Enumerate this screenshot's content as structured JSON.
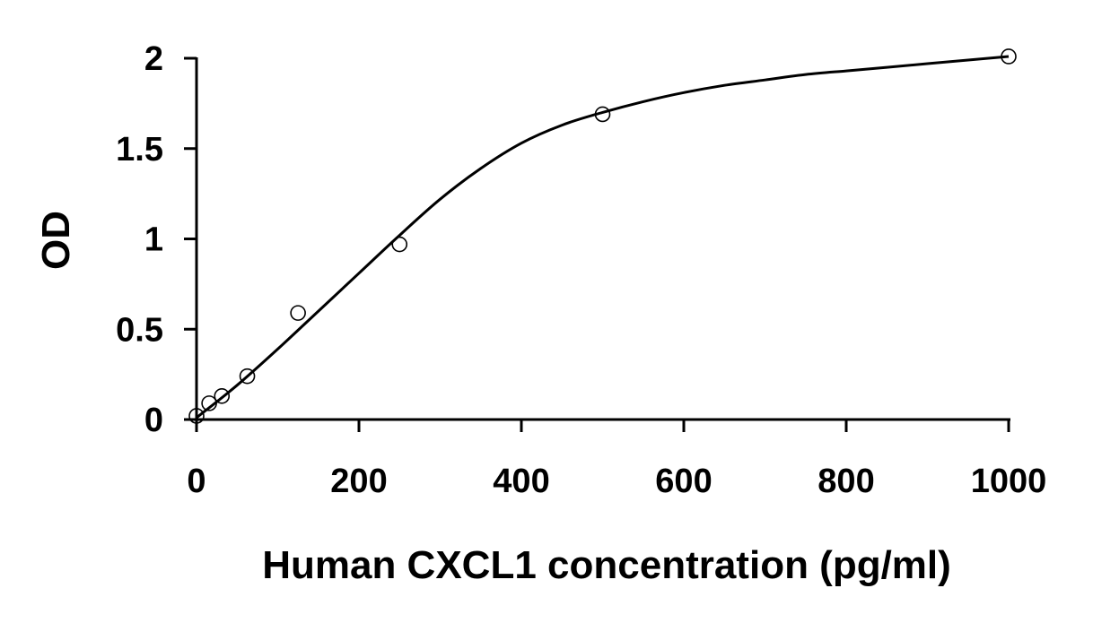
{
  "chart_data": {
    "type": "scatter",
    "title": "",
    "xlabel": "Human CXCL1 concentration (pg/ml)",
    "ylabel": "OD",
    "xlim": [
      0,
      1000
    ],
    "ylim": [
      0,
      2
    ],
    "xticks": [
      0,
      200,
      400,
      600,
      800,
      1000
    ],
    "xtick_labels": [
      "0",
      "200",
      "400",
      "600",
      "800",
      "1000"
    ],
    "yticks": [
      0,
      0.5,
      1,
      1.5,
      2
    ],
    "ytick_labels": [
      "0",
      "0.5",
      "1",
      "1.5",
      "2"
    ],
    "grid": false,
    "series": [
      {
        "x": [
          0,
          15.6,
          31.2,
          62.5,
          125,
          250,
          500,
          1000
        ],
        "y": [
          0.02,
          0.09,
          0.13,
          0.24,
          0.59,
          0.97,
          1.69,
          2.01
        ]
      }
    ],
    "fit_curve": {
      "x": [
        0,
        50,
        100,
        150,
        200,
        250,
        300,
        350,
        400,
        450,
        500,
        550,
        600,
        650,
        700,
        750,
        800,
        850,
        900,
        950,
        1000
      ],
      "y": [
        0.01,
        0.19,
        0.39,
        0.6,
        0.81,
        1.02,
        1.22,
        1.39,
        1.53,
        1.63,
        1.7,
        1.76,
        1.81,
        1.85,
        1.88,
        1.91,
        1.93,
        1.95,
        1.97,
        1.99,
        2.01
      ]
    },
    "colors": {
      "axis": "#000000",
      "curve": "#000000",
      "marker": "#000000"
    }
  }
}
